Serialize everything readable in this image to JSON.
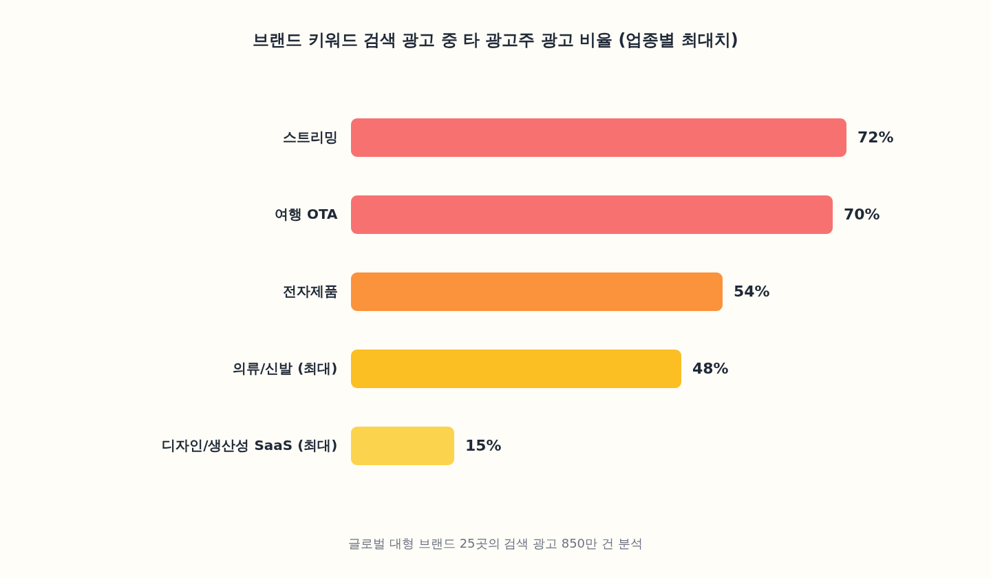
{
  "chart_data": {
    "type": "bar",
    "orientation": "horizontal",
    "title": "브랜드 키워드 검색 광고 중 타 광고주 광고 비율 (업종별 최대치)",
    "categories": [
      "스트리밍",
      "여행 OTA",
      "전자제품",
      "의류/신발 (최대)",
      "디자인/생산성 SaaS (최대)"
    ],
    "values": [
      72,
      70,
      54,
      48,
      15
    ],
    "value_labels": [
      "72%",
      "70%",
      "54%",
      "48%",
      "15%"
    ],
    "colors": [
      "#f87171",
      "#f87171",
      "#fb923c",
      "#fbbf24",
      "#fcd34d"
    ],
    "annotations": [
      "글로벌 대형 브랜드 25곳의 검색 광고 850만 건 분석"
    ]
  }
}
